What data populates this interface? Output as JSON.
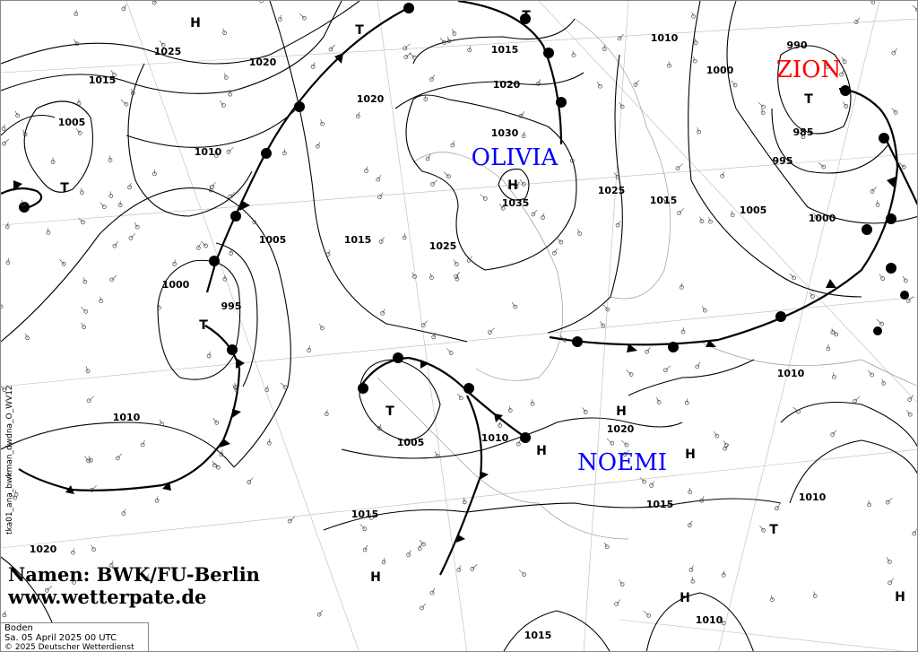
{
  "map": {
    "product_id": "tka01_ana_bwkman_dwdna_O_WV12",
    "credit_names": "Namen: BWK/FU-Berlin",
    "credit_url": "www.wetterpate.de",
    "info": {
      "level": "Boden",
      "datetime": "Sa. 05 April 2025 00 UTC",
      "copyright": "© 2025 Deutscher Wetterdienst"
    },
    "system_names": [
      {
        "name": "OLIVIA",
        "color": "#0000ff"
      },
      {
        "name": "ZION",
        "color": "#ff0000"
      },
      {
        "name": "NOEMI",
        "color": "#0000ff"
      }
    ],
    "pressure_centers": [
      "H",
      "T",
      "T",
      "T",
      "H",
      "T",
      "H",
      "H",
      "H",
      "T",
      "T",
      "T",
      "H",
      "H",
      "H"
    ],
    "isobar_labels": [
      "1025",
      "1020",
      "1015",
      "1005",
      "1010",
      "1005",
      "1015",
      "1000",
      "995",
      "1010",
      "1020",
      "1015",
      "1020",
      "1030",
      "1035",
      "1025",
      "1025",
      "1015",
      "1010",
      "1000",
      "990",
      "985",
      "995",
      "1005",
      "1000",
      "1010",
      "1005",
      "1010",
      "1020",
      "1015",
      "1010",
      "1010",
      "1015",
      "1015",
      "1020"
    ]
  }
}
